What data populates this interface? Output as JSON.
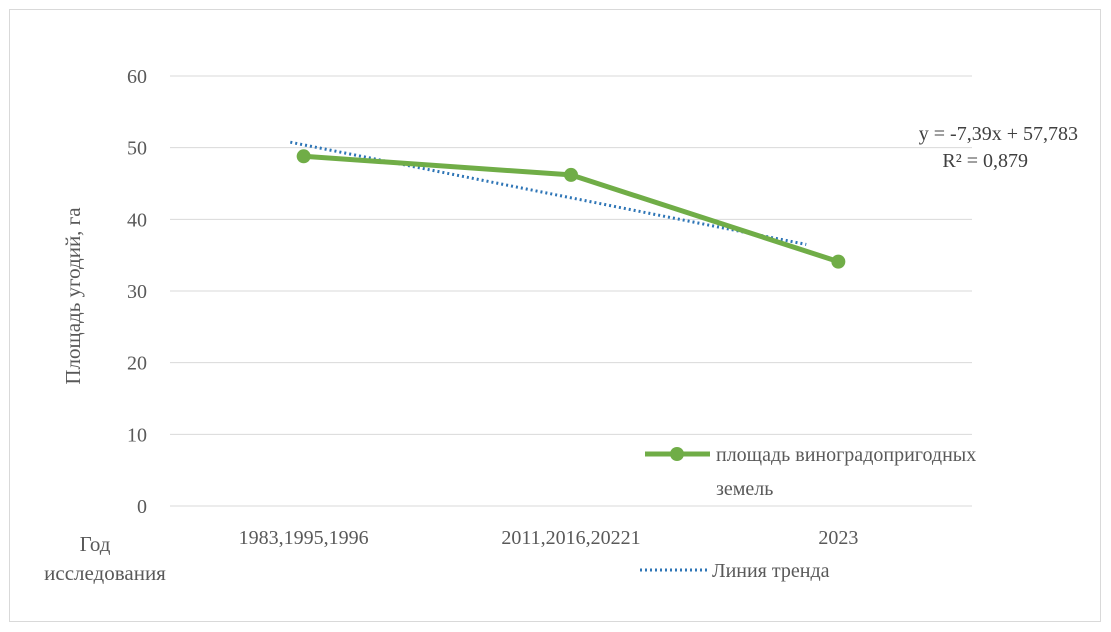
{
  "chart_data": {
    "type": "line",
    "ylabel": "Площадь угодий, га",
    "xlabel_lines": [
      "Год",
      "исследования"
    ],
    "categories": [
      "1983,1995,1996",
      "2011,2016,20221",
      "2023"
    ],
    "ylim": [
      0,
      60
    ],
    "yticks": [
      0,
      10,
      20,
      30,
      40,
      50,
      60
    ],
    "grid": true,
    "series": [
      {
        "name_lines": [
          "площадь виноградопригодных",
          "земель"
        ],
        "values": [
          48.8,
          46.2,
          34.1
        ],
        "color": "#70ad47",
        "marker": "circle"
      }
    ],
    "trendline": {
      "name": "Линия тренда",
      "slope": -7.39,
      "intercept": 57.783,
      "color": "#2e75b6",
      "style": "dotted",
      "equation": "y = -7,39x + 57,783",
      "r_squared": "R² = 0,879"
    },
    "legend_position": "bottom-right"
  }
}
